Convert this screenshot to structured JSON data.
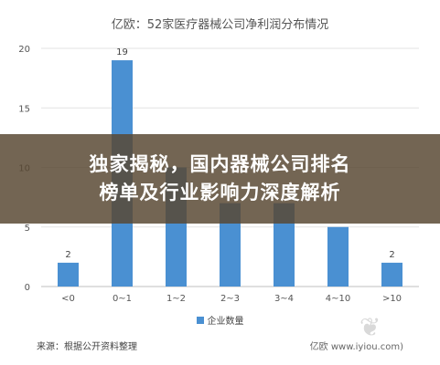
{
  "chart_data": {
    "type": "bar",
    "title": "亿欧：52家医疗器械公司净利润分布情况",
    "categories": [
      "<0",
      "0~1",
      "1~2",
      "2~3",
      "3~4",
      "4~10",
      ">10"
    ],
    "series": [
      {
        "name": "企业数量",
        "values": [
          2,
          19,
          10,
          7,
          7,
          5,
          2
        ],
        "color": "#4a90d2"
      }
    ],
    "data_labels": [
      "2",
      "19",
      "",
      "",
      "",
      "",
      "2"
    ],
    "yticks": [
      0,
      5,
      10,
      15,
      20
    ],
    "ylim": [
      0,
      20
    ],
    "grid": true,
    "legend_position": "bottom"
  },
  "footer": {
    "source": "来源：根据公开资料整理",
    "credit": "亿欧 www.iyiou.com)"
  },
  "banner": {
    "line1": "独家揭秘，国内器械公司排名",
    "line2": "榜单及行业影响力深度解析"
  },
  "watermark_icon": "iyiou-logo-icon"
}
